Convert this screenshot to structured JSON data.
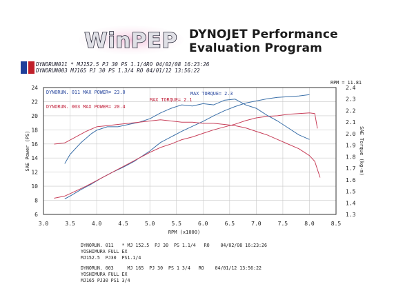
{
  "header": {
    "logo_text": "WinPEP",
    "title_line1": "DYNOJET Performance",
    "title_line2": "Evaluation Program"
  },
  "runs": [
    {
      "text": "DYNORUN011 * MJ152.5 PJ 30 PS 1.1/4RO 04/02/08 16:23:26",
      "swatch_left": "#1f3f9a",
      "swatch_right": "#c0202a"
    },
    {
      "text": "DYNORUN003 MJ165 PJ 30 PS 1.3/4 RO 04/01/12 13:56:22",
      "swatch_left": "#1f3f9a",
      "swatch_right": "#c0202a"
    }
  ],
  "chart_data": {
    "type": "line",
    "xlabel": "RPM (x1000)",
    "ylabel_left": "SAE Power (PS)",
    "ylabel_right": "SAE Torque (kg-m)",
    "xlim": [
      3.0,
      8.5
    ],
    "ylim_left": [
      6,
      24
    ],
    "ylim_right": [
      1.3,
      2.4
    ],
    "x_ticks": [
      "3.0",
      "3.5",
      "4.0",
      "4.5",
      "5.0",
      "5.5",
      "6.0",
      "6.5",
      "7.0",
      "7.5",
      "8.0",
      "8.5"
    ],
    "y_ticks_left": [
      "6",
      "8",
      "10",
      "12",
      "14",
      "16",
      "18",
      "20",
      "22",
      "24"
    ],
    "y_ticks_right": [
      "1.3",
      "1.4",
      "1.5",
      "1.6",
      "1.7",
      "1.8",
      "1.9",
      "2.0",
      "2.1",
      "2.2",
      "2.3",
      "2.4"
    ],
    "rpm_readout": "RPM = 11.81",
    "grid": true,
    "annotations": {
      "run011_max_power": "DYNORUN. 011  MAX POWER= 23.0",
      "run003_max_power": "DYNORUN. 003  MAX POWER= 20.4",
      "max_torque_011": "MAX TORQUE= 2.3",
      "max_torque_003": "MAX TORQUE= 2.1"
    },
    "colors": {
      "run011": "#3a6fa8",
      "run003": "#c8405a"
    },
    "series": [
      {
        "run": "011",
        "measure": "power",
        "axis": "left",
        "x": [
          3.4,
          3.5,
          3.7,
          3.9,
          4.1,
          4.3,
          4.5,
          4.7,
          5.0,
          5.2,
          5.4,
          5.6,
          5.8,
          6.0,
          6.2,
          6.4,
          6.6,
          6.8,
          7.0,
          7.2,
          7.4,
          7.6,
          7.8,
          8.0
        ],
        "y": [
          8.2,
          8.6,
          9.5,
          10.3,
          11.2,
          12.0,
          12.7,
          13.5,
          15.0,
          16.2,
          17.0,
          17.8,
          18.5,
          19.2,
          20.0,
          20.7,
          21.3,
          21.8,
          22.1,
          22.4,
          22.6,
          22.7,
          22.8,
          23.0
        ]
      },
      {
        "run": "003",
        "measure": "power",
        "axis": "left",
        "x": [
          3.2,
          3.4,
          3.6,
          3.8,
          4.0,
          4.2,
          4.4,
          4.6,
          4.8,
          5.0,
          5.2,
          5.4,
          5.6,
          5.8,
          6.0,
          6.2,
          6.4,
          6.6,
          6.8,
          7.0,
          7.2,
          7.4,
          7.6,
          7.8,
          8.0,
          8.1,
          8.15
        ],
        "y": [
          8.3,
          8.6,
          9.3,
          10.0,
          10.8,
          11.6,
          12.4,
          13.2,
          14.0,
          14.8,
          15.5,
          16.0,
          16.6,
          17.0,
          17.5,
          18.0,
          18.4,
          18.8,
          19.3,
          19.7,
          19.9,
          20.0,
          20.2,
          20.3,
          20.4,
          20.3,
          18.2
        ]
      },
      {
        "run": "011",
        "measure": "torque",
        "axis": "right",
        "x": [
          3.4,
          3.5,
          3.7,
          3.9,
          4.0,
          4.2,
          4.4,
          4.6,
          4.8,
          5.0,
          5.2,
          5.4,
          5.6,
          5.8,
          6.0,
          6.2,
          6.4,
          6.6,
          6.8,
          7.0,
          7.2,
          7.4,
          7.6,
          7.8,
          8.0
        ],
        "y": [
          1.74,
          1.82,
          1.92,
          2.0,
          2.03,
          2.06,
          2.06,
          2.08,
          2.1,
          2.13,
          2.18,
          2.22,
          2.25,
          2.24,
          2.26,
          2.25,
          2.29,
          2.3,
          2.25,
          2.22,
          2.16,
          2.11,
          2.05,
          1.99,
          1.95
        ]
      },
      {
        "run": "003",
        "measure": "torque",
        "axis": "right",
        "x": [
          3.2,
          3.4,
          3.6,
          3.8,
          4.0,
          4.2,
          4.4,
          4.6,
          4.8,
          5.0,
          5.2,
          5.4,
          5.6,
          5.8,
          6.0,
          6.2,
          6.4,
          6.6,
          6.8,
          7.0,
          7.2,
          7.4,
          7.6,
          7.8,
          8.0,
          8.1,
          8.2
        ],
        "y": [
          1.91,
          1.92,
          1.97,
          2.02,
          2.06,
          2.07,
          2.08,
          2.09,
          2.1,
          2.11,
          2.12,
          2.11,
          2.1,
          2.1,
          2.09,
          2.09,
          2.08,
          2.07,
          2.05,
          2.02,
          1.99,
          1.95,
          1.91,
          1.87,
          1.81,
          1.76,
          1.62
        ]
      }
    ]
  },
  "footer": {
    "block1_line1": "DYNORUN. 011   * MJ 152.5  PJ 30  PS 1.1/4   RO    04/02/08 16:23:26",
    "block1_line2": "YOSHIMURA FULL EX",
    "block1_line3": "MJ152.5  PJ30  PS1.1/4",
    "block2_line1": "DYNORUN. 003     MJ 165  PJ 30  PS 1 3/4   RO    04/01/12 13:56:22",
    "block2_line2": "YOSHIMURA FULL EX",
    "block2_line3": "MJ165 PJ30 PS1 3/4"
  }
}
